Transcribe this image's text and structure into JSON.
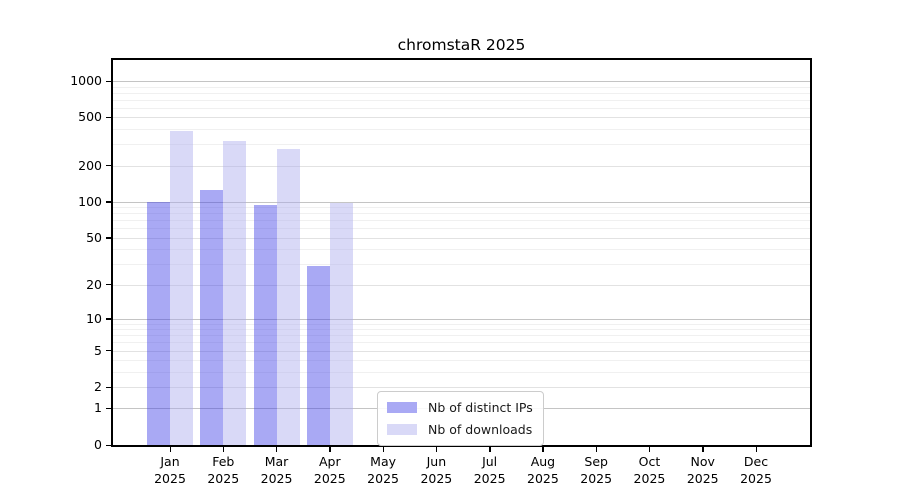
{
  "figure": {
    "background": "#ffffff"
  },
  "chart_data": {
    "type": "bar",
    "title": "chromstaR 2025",
    "xlabel": "",
    "ylabel": "",
    "months": [
      "Jan",
      "Feb",
      "Mar",
      "Apr",
      "May",
      "Jun",
      "Jul",
      "Aug",
      "Sep",
      "Oct",
      "Nov",
      "Dec"
    ],
    "year": "2025",
    "series": [
      {
        "name": "Nb of distinct IPs",
        "color": "#a9a9f4",
        "fill": "rgba(64,64,231,0.45)",
        "values": [
          100,
          125,
          95,
          29,
          0,
          0,
          0,
          0,
          0,
          0,
          0,
          0
        ]
      },
      {
        "name": "Nb of downloads",
        "color": "#d9d9f7",
        "fill": "rgba(171,171,237,0.45)",
        "values": [
          390,
          320,
          275,
          97,
          0,
          0,
          0,
          0,
          0,
          0,
          0,
          0
        ]
      }
    ],
    "y_scale": "log1p",
    "y_ticks": [
      0,
      1,
      2,
      5,
      10,
      20,
      50,
      100,
      200,
      500,
      1000
    ],
    "y_minor_ticks": [
      3,
      4,
      6,
      7,
      8,
      9,
      30,
      40,
      60,
      70,
      80,
      90,
      300,
      400,
      600,
      700,
      800,
      900
    ],
    "y_decade_ticks": [
      1,
      10,
      100,
      1000
    ],
    "ylim_top_label": 1000,
    "grid": true,
    "legend_position": "inside-bottom-center"
  }
}
